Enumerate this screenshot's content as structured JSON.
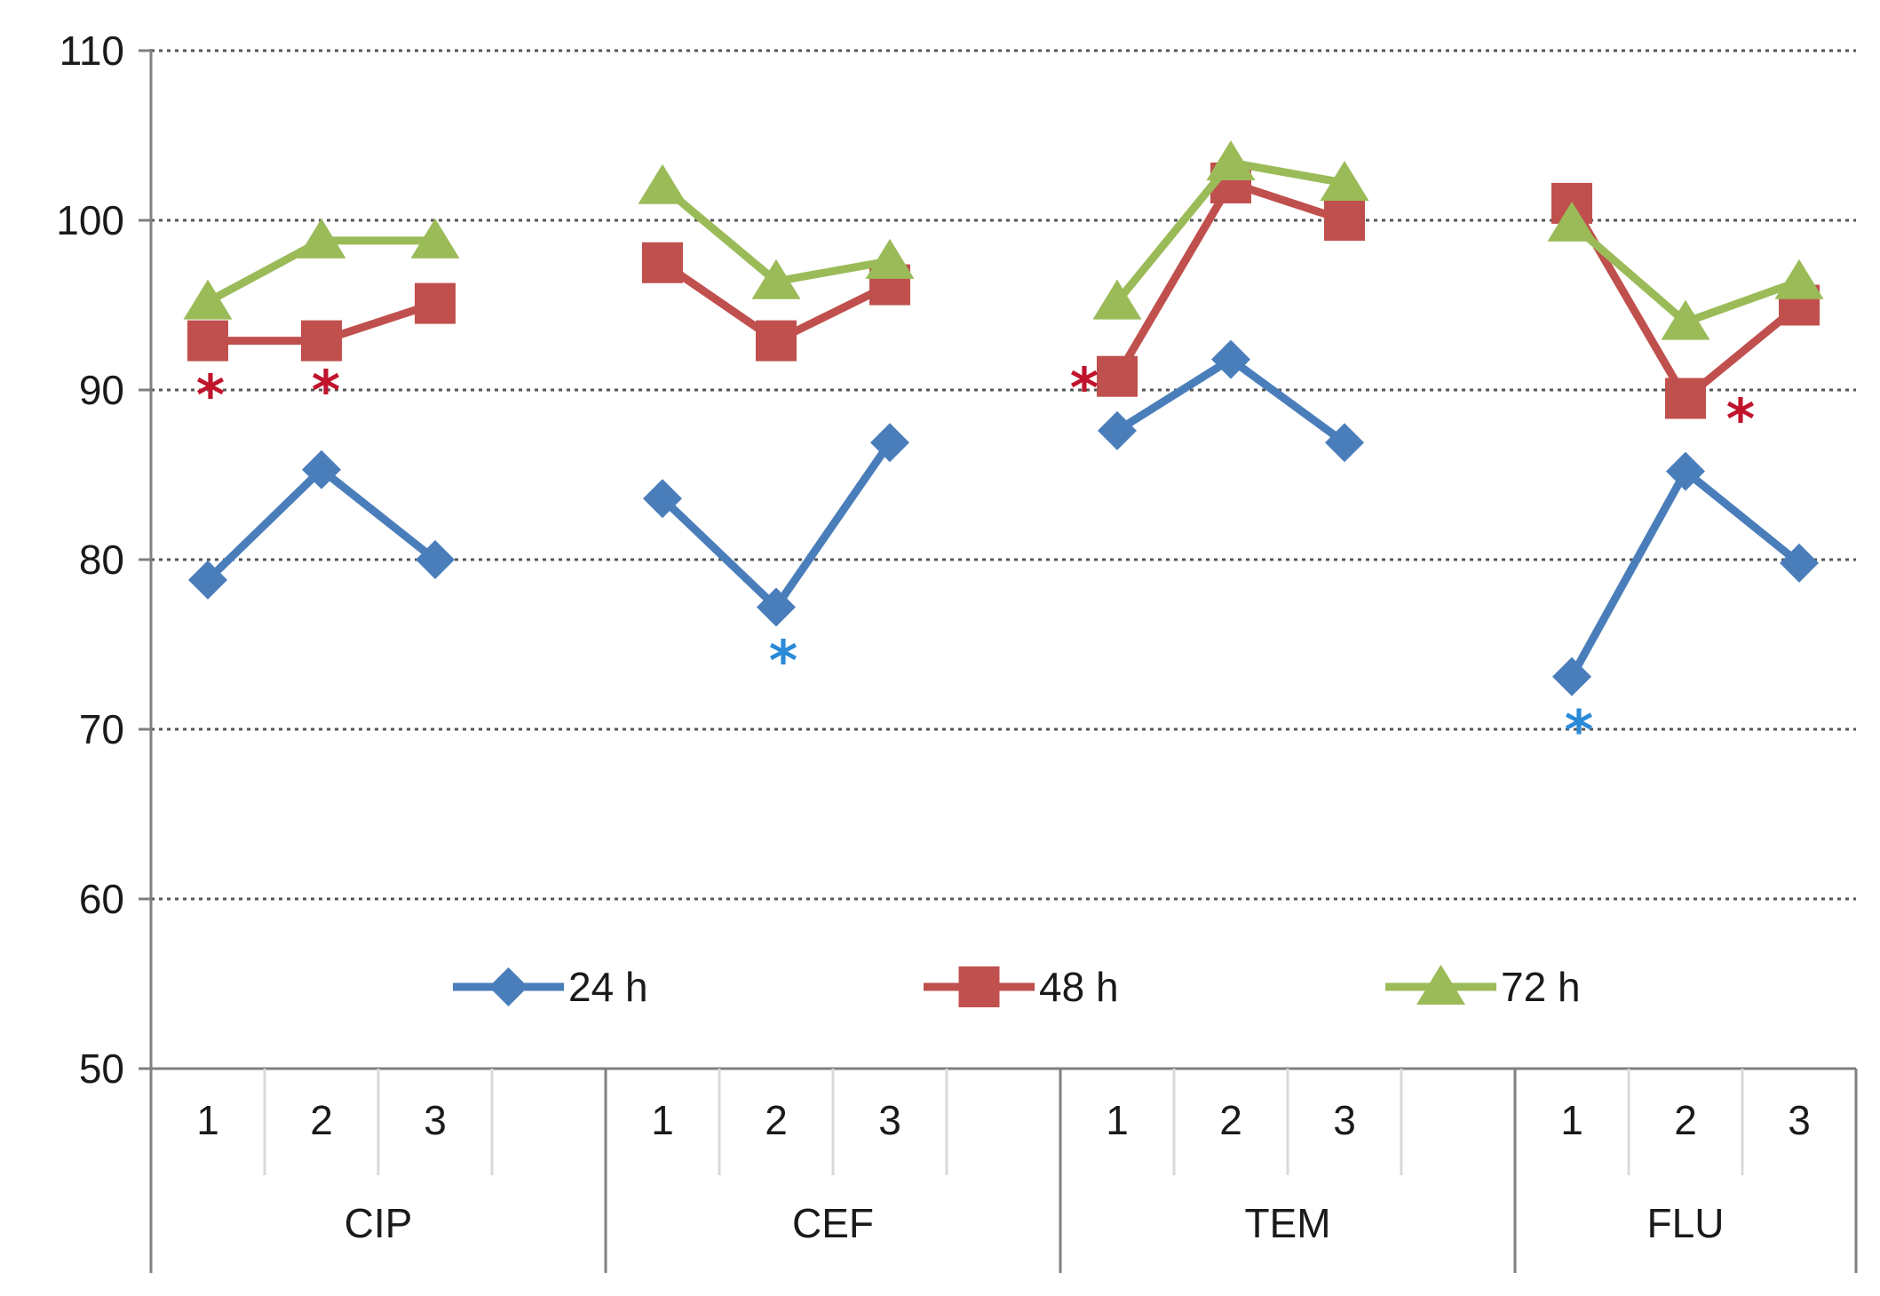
{
  "chart_data": {
    "type": "line",
    "title": "",
    "xlabel": "",
    "ylabel": "",
    "ylim": [
      50,
      110
    ],
    "yticks": [
      50,
      60,
      70,
      80,
      90,
      100,
      110
    ],
    "grid": true,
    "legend_position": "inside-bottom",
    "groups": [
      {
        "name": "CIP",
        "subcategories": [
          "1",
          "2",
          "3",
          ""
        ]
      },
      {
        "name": "CEF",
        "subcategories": [
          "1",
          "2",
          "3",
          ""
        ]
      },
      {
        "name": "TEM",
        "subcategories": [
          "1",
          "2",
          "3",
          ""
        ]
      },
      {
        "name": "FLU",
        "subcategories": [
          "1",
          "2",
          "3"
        ]
      }
    ],
    "series": [
      {
        "name": "24 h",
        "color": "#4a7ebb",
        "marker": "diamond",
        "values": [
          [
            78.8,
            85.3,
            80.0
          ],
          [
            83.6,
            77.2,
            86.9
          ],
          [
            87.6,
            91.8,
            86.9
          ],
          [
            73.1,
            85.2,
            79.8
          ]
        ]
      },
      {
        "name": "48 h",
        "color": "#c0504d",
        "marker": "square",
        "values": [
          [
            92.9,
            92.9,
            95.1
          ],
          [
            97.5,
            92.9,
            96.2
          ],
          [
            90.8,
            102.2,
            100.0
          ],
          [
            101.0,
            89.5,
            95.0
          ]
        ]
      },
      {
        "name": "72 h",
        "color": "#9bbb59",
        "marker": "triangle",
        "values": [
          [
            95.2,
            98.8,
            98.8
          ],
          [
            102.0,
            96.4,
            97.6
          ],
          [
            95.2,
            103.4,
            102.2
          ],
          [
            99.8,
            94.0,
            96.4
          ]
        ]
      }
    ],
    "annotations": [
      {
        "text": "*",
        "series": "48 h",
        "group": "CIP",
        "sub": 0,
        "color": "#c0142d"
      },
      {
        "text": "*",
        "series": "48 h",
        "group": "CIP",
        "sub": 1,
        "color": "#c0142d"
      },
      {
        "text": "*",
        "series": "48 h",
        "group": "TEM",
        "sub": 0,
        "color": "#c0142d"
      },
      {
        "text": "*",
        "series": "48 h",
        "group": "FLU",
        "sub": 1,
        "color": "#c0142d"
      },
      {
        "text": "*",
        "series": "24 h",
        "group": "CEF",
        "sub": 1,
        "color": "#2a8ad8"
      },
      {
        "text": "*",
        "series": "24 h",
        "group": "FLU",
        "sub": 0,
        "color": "#2a8ad8"
      }
    ]
  }
}
